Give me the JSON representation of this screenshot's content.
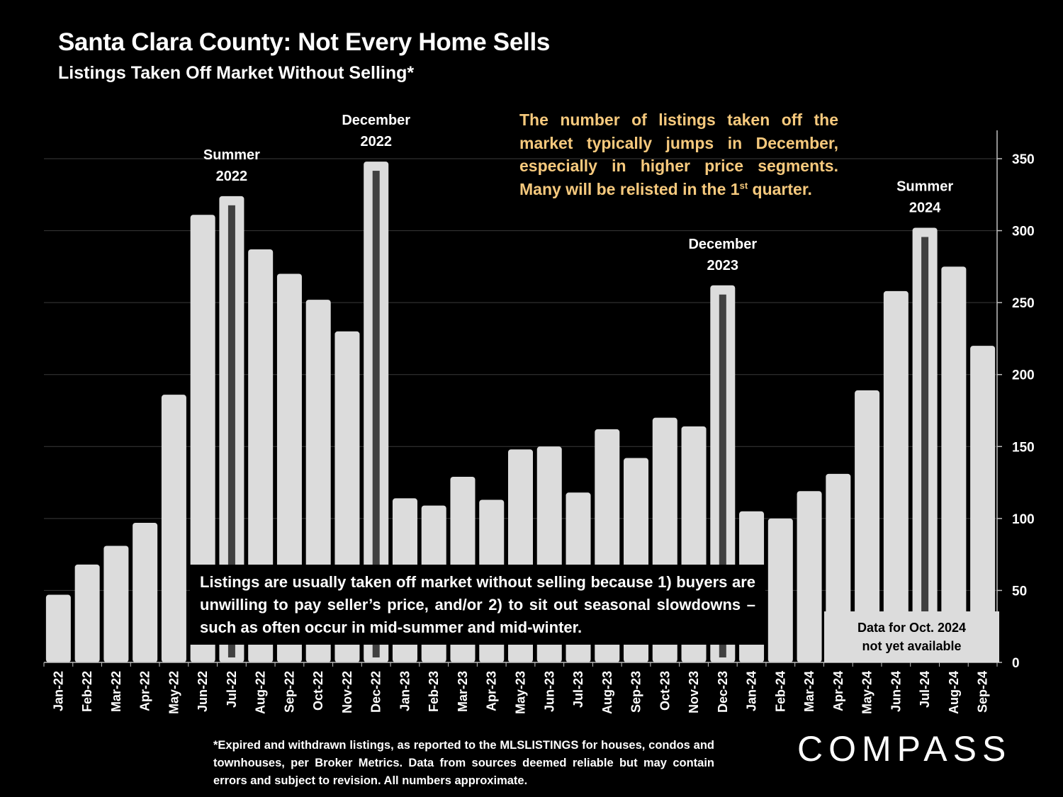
{
  "header": {
    "title": "Santa Clara County: Not Every Home Sells",
    "subtitle": "Listings Taken Off Market Without Selling*"
  },
  "callouts": {
    "top_main": "The number of listings taken off the market typically jumps in December, especially in higher price segments. Many will be relisted in the 1",
    "top_sup": "st",
    "top_end": " quarter.",
    "bottom": "Listings are usually taken off market without selling because 1) buyers are unwilling to pay seller’s price, and/or 2) to sit out seasonal slowdowns – such as often occur in mid-summer and mid-winter.",
    "na_line1": "Data for Oct. 2024",
    "na_line2": "not yet available"
  },
  "annotations": [
    {
      "category": "Jul-22",
      "line1": "Summer",
      "line2": "2022"
    },
    {
      "category": "Dec-22",
      "line1": "December",
      "line2": "2022"
    },
    {
      "category": "Dec-23",
      "line1": "December",
      "line2": "2023"
    },
    {
      "category": "Jul-24",
      "line1": "Summer",
      "line2": "2024"
    }
  ],
  "footnote": "*Expired and withdrawn listings, as reported to the MLSLISTINGS for houses, condos and townhouses, per Broker Metrics. Data from sources deemed reliable but may contain errors and subject to revision. All numbers approximate.",
  "logo": "COMPASS",
  "colors": {
    "background": "#000000",
    "bar": "#dcdcdc",
    "highlight_stripe": "#404040",
    "callout_text": "#f6c97d",
    "gridline": "#3a3a3a"
  },
  "chart_data": {
    "type": "bar",
    "categories": [
      "Jan-22",
      "Feb-22",
      "Mar-22",
      "Apr-22",
      "May-22",
      "Jun-22",
      "Jul-22",
      "Aug-22",
      "Sep-22",
      "Oct-22",
      "Nov-22",
      "Dec-22",
      "Jan-23",
      "Feb-23",
      "Mar-23",
      "Apr-23",
      "May-23",
      "Jun-23",
      "Jul-23",
      "Aug-23",
      "Sep-23",
      "Oct-23",
      "Nov-23",
      "Dec-23",
      "Jan-24",
      "Feb-24",
      "Mar-24",
      "Apr-24",
      "May-24",
      "Jun-24",
      "Jul-24",
      "Aug-24",
      "Sep-24"
    ],
    "values": [
      47,
      68,
      81,
      97,
      186,
      311,
      324,
      287,
      270,
      252,
      230,
      348,
      114,
      109,
      129,
      113,
      148,
      150,
      118,
      162,
      142,
      170,
      164,
      262,
      105,
      100,
      119,
      131,
      189,
      258,
      302,
      275,
      220
    ],
    "highlighted": [
      "Jul-22",
      "Dec-22",
      "Dec-23",
      "Jul-24"
    ],
    "yticks": [
      0,
      50,
      100,
      150,
      200,
      250,
      300,
      350
    ],
    "ylim": [
      0,
      370
    ],
    "y_axis_position": "right",
    "grid": true
  }
}
